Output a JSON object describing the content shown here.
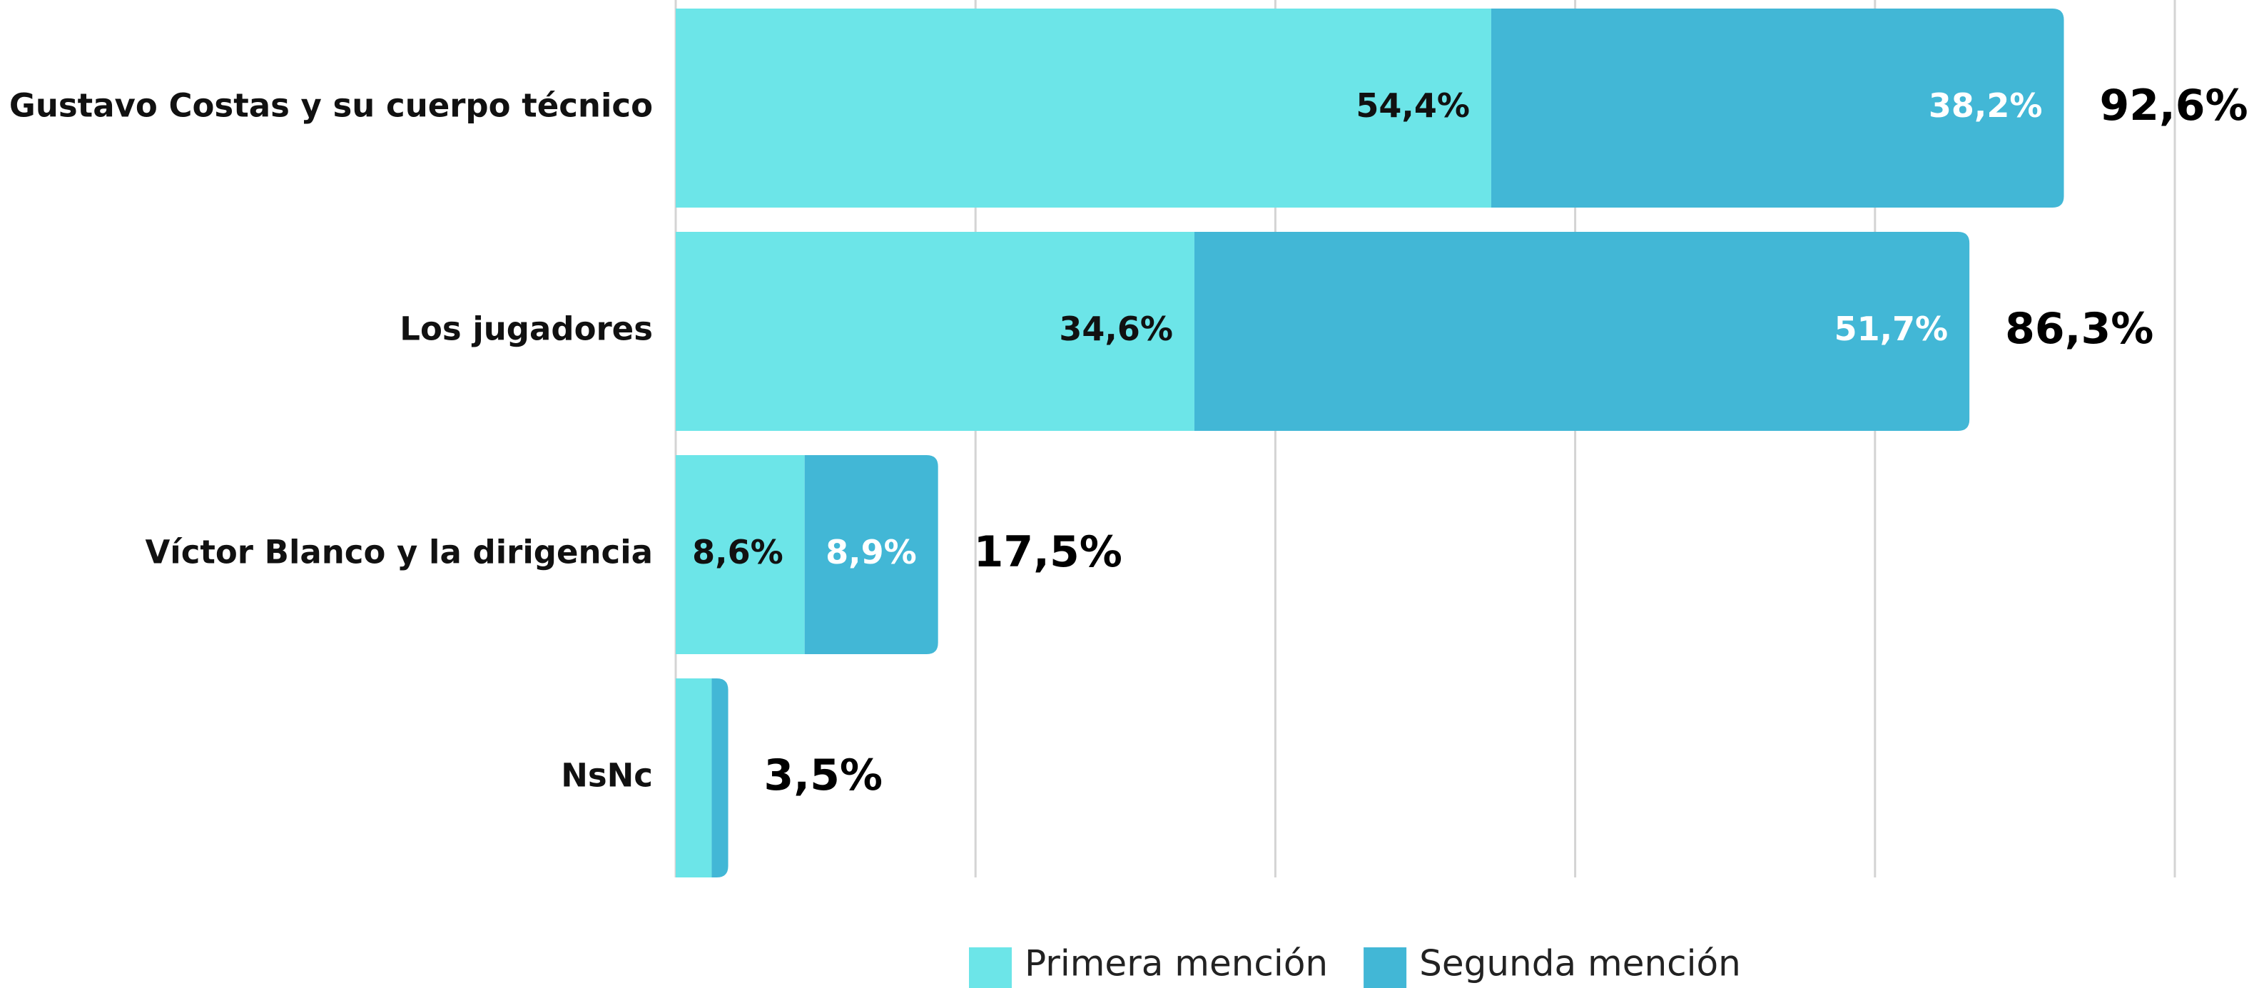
{
  "chart_data": {
    "type": "stacked-bar-horizontal",
    "categories": [
      "Gustavo Costas y su cuerpo técnico",
      "Los jugadores",
      "Víctor Blanco y la dirigencia",
      "NsNc"
    ],
    "series": [
      {
        "name": "Primera mención",
        "color": "#6ce5e8",
        "values": [
          54.4,
          34.6,
          8.6,
          2.4
        ],
        "value_labels": [
          "54,4%",
          "34,6%",
          "8,6%",
          null
        ],
        "label_color": "#111111"
      },
      {
        "name": "Segunda mención",
        "color": "#42b7d6",
        "values": [
          38.2,
          51.7,
          8.9,
          1.1
        ],
        "value_labels": [
          "38,2%",
          "51,7%",
          "8,9%",
          null
        ],
        "label_color": "#ffffff"
      }
    ],
    "totals": [
      92.6,
      86.3,
      17.5,
      3.5
    ],
    "total_labels": [
      "92,6%",
      "86,3%",
      "17,5%",
      "3,5%"
    ],
    "xlim": [
      0,
      100
    ],
    "xticks": [
      0,
      20,
      40,
      60,
      80,
      100
    ],
    "grid": true
  }
}
